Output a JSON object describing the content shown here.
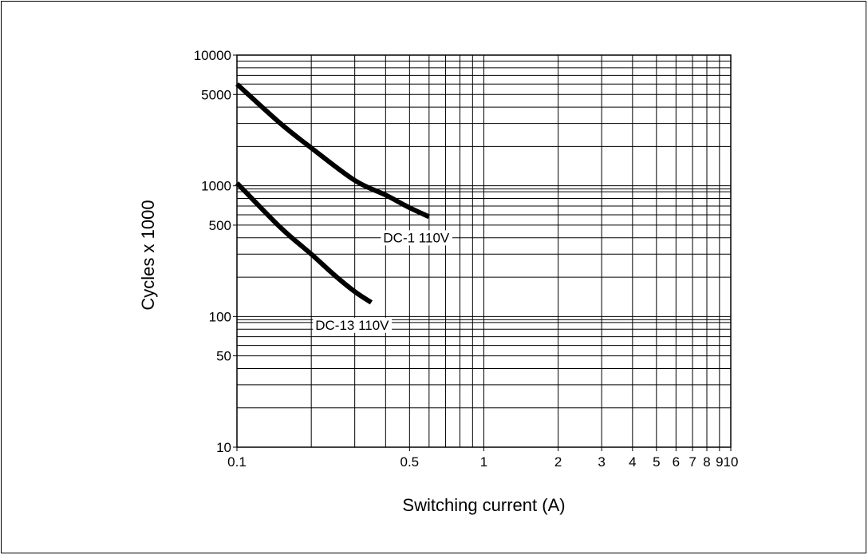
{
  "chart_data": {
    "type": "line",
    "title": "",
    "xlabel": "Switching current (A)",
    "ylabel": "Cycles x 1000",
    "x_scale": "log",
    "y_scale": "log",
    "xlim": [
      0.1,
      10
    ],
    "ylim": [
      10,
      10000
    ],
    "grid": true,
    "x_ticks": [
      0.1,
      0.2,
      0.3,
      0.4,
      0.5,
      0.6,
      0.7,
      0.8,
      0.9,
      1,
      2,
      3,
      4,
      5,
      6,
      7,
      8,
      9,
      10
    ],
    "x_tick_labels": [
      {
        "value": 0.1,
        "label": "0.1"
      },
      {
        "value": 0.5,
        "label": "0.5"
      },
      {
        "value": 1,
        "label": "1"
      },
      {
        "value": 2,
        "label": "2"
      },
      {
        "value": 3,
        "label": "3"
      },
      {
        "value": 4,
        "label": "4"
      },
      {
        "value": 5,
        "label": "5"
      },
      {
        "value": 6,
        "label": "6"
      },
      {
        "value": 7,
        "label": "7"
      },
      {
        "value": 8,
        "label": "8"
      },
      {
        "value": 9,
        "label": "9"
      },
      {
        "value": 10,
        "label": "10"
      }
    ],
    "y_ticks": [
      10,
      20,
      30,
      40,
      50,
      60,
      70,
      80,
      90,
      100,
      200,
      300,
      400,
      500,
      600,
      700,
      800,
      900,
      1000,
      2000,
      3000,
      4000,
      5000,
      6000,
      7000,
      8000,
      9000,
      10000
    ],
    "y_tick_labels": [
      {
        "value": 10,
        "label": "10"
      },
      {
        "value": 50,
        "label": "50"
      },
      {
        "value": 100,
        "label": "100"
      },
      {
        "value": 500,
        "label": "500"
      },
      {
        "value": 1000,
        "label": "1000"
      },
      {
        "value": 5000,
        "label": "5000"
      },
      {
        "value": 10000,
        "label": "10000"
      }
    ],
    "series": [
      {
        "name": "DC-1 110V",
        "x": [
          0.1,
          0.15,
          0.2,
          0.3,
          0.4,
          0.5,
          0.6
        ],
        "y": [
          6000,
          3000,
          1950,
          1100,
          850,
          680,
          580
        ]
      },
      {
        "name": "DC-13 110V",
        "x": [
          0.1,
          0.15,
          0.2,
          0.25,
          0.3,
          0.35
        ],
        "y": [
          1050,
          480,
          300,
          205,
          155,
          128
        ]
      }
    ]
  }
}
